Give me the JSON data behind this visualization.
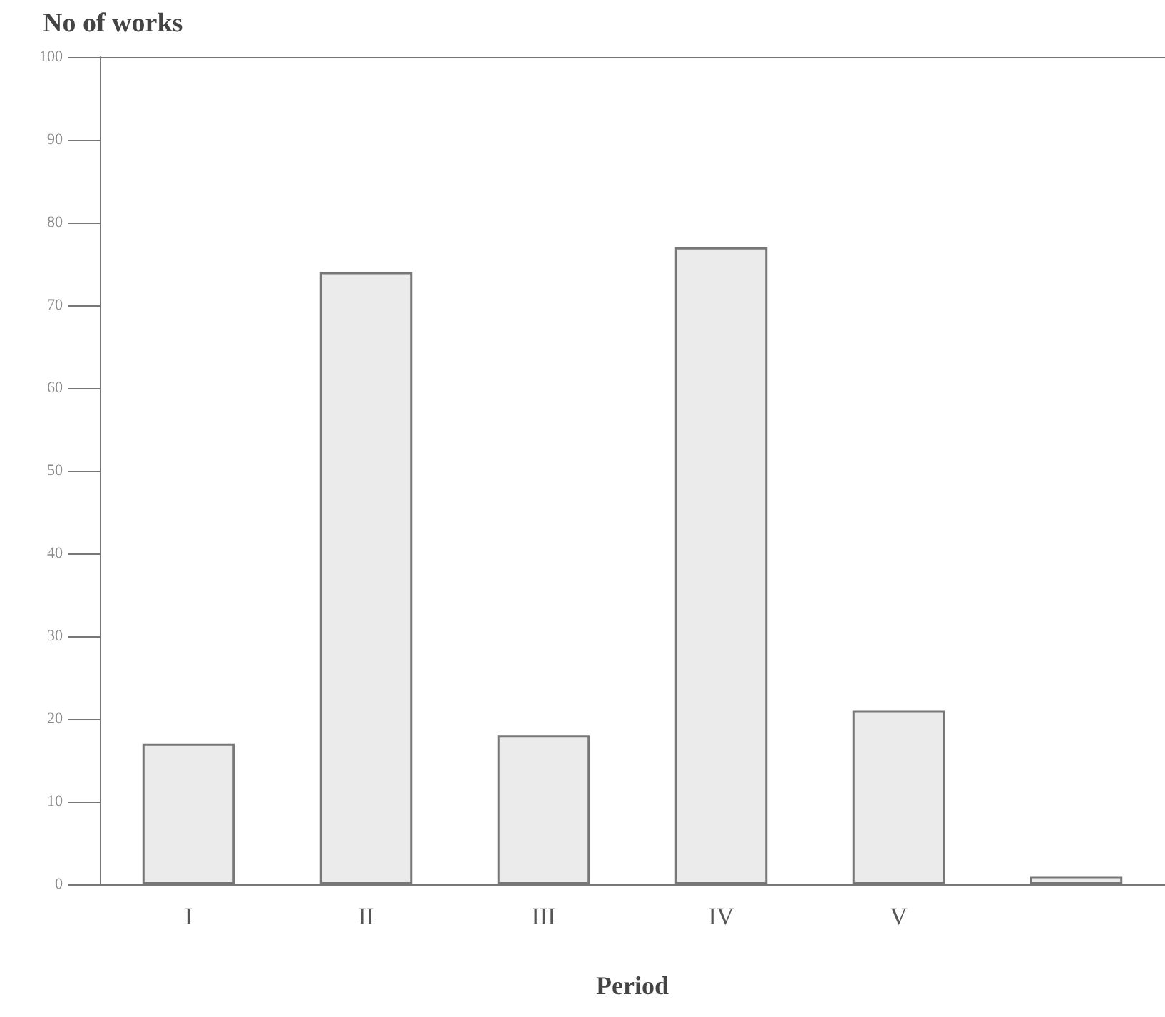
{
  "chart_data": {
    "type": "bar",
    "ylabel": "No of works",
    "xlabel": "Period",
    "categories": [
      "I",
      "II",
      "III",
      "IV",
      "V",
      null
    ],
    "values": [
      17,
      74,
      18,
      77,
      21,
      1
    ],
    "color": "#ebebeb",
    "ylim": [
      0,
      100
    ],
    "yticks": [
      0,
      10,
      20,
      30,
      40,
      50,
      60,
      70,
      80,
      90,
      100
    ],
    "grid": false
  }
}
